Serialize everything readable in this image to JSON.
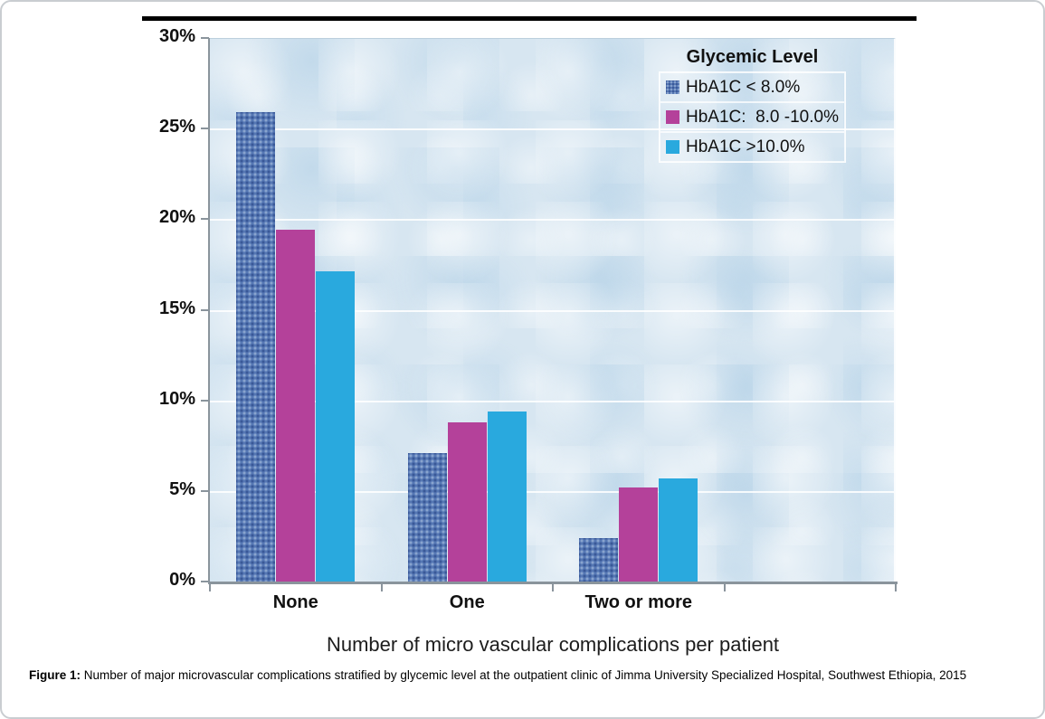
{
  "figure": {
    "caption_label": "Figure 1:",
    "caption_text": " Number of major microvascular complications stratified by glycemic level at the outpatient clinic of Jimma University Specialized Hospital, Southwest Ethiopia, 2015"
  },
  "chart_data": {
    "type": "bar",
    "title": "",
    "xlabel": "Number of micro vascular complications per patient",
    "ylabel": "",
    "categories": [
      "None",
      "One",
      "Two or more"
    ],
    "series": [
      {
        "name": "HbA1C < 8.0%",
        "color": "#5678b4",
        "pattern": "woven-dots",
        "values": [
          25.9,
          7.1,
          2.4
        ]
      },
      {
        "name": "HbA1C:  8.0 -10.0%",
        "color": "#b4419a",
        "pattern": "solid",
        "values": [
          19.4,
          8.8,
          5.2
        ]
      },
      {
        "name": "HbA1C >10.0%",
        "color": "#29a9de",
        "pattern": "solid",
        "values": [
          17.1,
          9.4,
          5.7
        ]
      }
    ],
    "legend_title": "Glycemic Level",
    "legend_position": "top-right-inside",
    "ylim": [
      0,
      30
    ],
    "ytick_step": 5,
    "ytick_labels": [
      "0%",
      "5%",
      "10%",
      "15%",
      "20%",
      "25%",
      "30%"
    ],
    "grid": true,
    "plot_background": "#d7e6f1",
    "gridline_color": "#ffffff",
    "empty_fourth_slot": true
  }
}
